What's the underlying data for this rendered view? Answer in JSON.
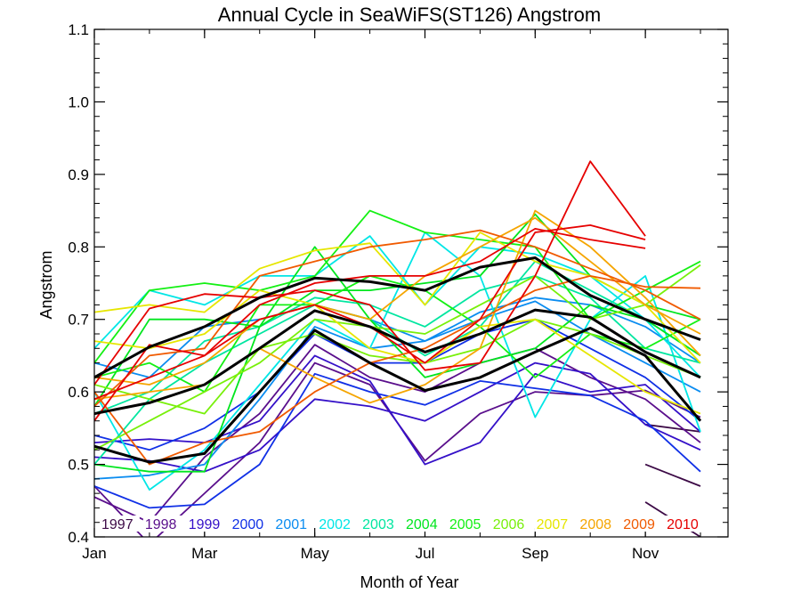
{
  "chart_data": {
    "type": "line",
    "title": "Annual Cycle in SeaWiFS(ST126) Angstrom",
    "xlabel": "Month of Year",
    "ylabel": "Angstrom",
    "xlim": [
      1,
      12.5
    ],
    "ylim": [
      0.4,
      1.1
    ],
    "xticks": [
      {
        "value": 1,
        "label": "Jan"
      },
      {
        "value": 3,
        "label": "Mar"
      },
      {
        "value": 5,
        "label": "May"
      },
      {
        "value": 7,
        "label": "Jul"
      },
      {
        "value": 9,
        "label": "Sep"
      },
      {
        "value": 11,
        "label": "Nov"
      }
    ],
    "yticks": [
      {
        "value": 0.4,
        "label": "0.4"
      },
      {
        "value": 0.5,
        "label": "0.5"
      },
      {
        "value": 0.6,
        "label": "0.6"
      },
      {
        "value": 0.7,
        "label": "0.7"
      },
      {
        "value": 0.8,
        "label": "0.8"
      },
      {
        "value": 0.9,
        "label": "0.9"
      },
      {
        "value": 1.0,
        "label": "1.0"
      },
      {
        "value": 1.1,
        "label": "1.1"
      }
    ],
    "x": [
      1,
      2,
      3,
      4,
      5,
      6,
      7,
      8,
      9,
      10,
      11,
      12
    ],
    "legend_position": "bottom-inside",
    "series": [
      {
        "name": "1997",
        "color": "#3c0a46",
        "lines": [
          [
            null,
            null,
            null,
            null,
            null,
            null,
            null,
            null,
            null,
            null,
            0.555,
            0.545
          ],
          [
            null,
            null,
            null,
            null,
            null,
            null,
            null,
            null,
            null,
            null,
            0.5,
            0.47
          ],
          [
            null,
            null,
            null,
            null,
            null,
            null,
            null,
            null,
            null,
            null,
            0.448,
            0.4
          ]
        ]
      },
      {
        "name": "1998",
        "color": "#5a0f8c",
        "lines": [
          [
            0.47,
            0.39,
            0.46,
            0.53,
            0.64,
            0.61,
            0.505,
            0.57,
            0.6,
            0.595,
            0.602,
            0.565
          ],
          [
            0.455,
            0.42,
            0.51,
            0.57,
            0.665,
            0.62,
            0.6,
            0.64,
            0.66,
            0.62,
            0.59,
            0.53
          ]
        ]
      },
      {
        "name": "1999",
        "color": "#3410c8",
        "lines": [
          [
            0.53,
            0.535,
            0.53,
            0.56,
            0.65,
            0.615,
            0.5,
            0.53,
            0.625,
            0.6,
            0.61,
            0.545
          ],
          [
            0.51,
            0.505,
            0.49,
            0.52,
            0.59,
            0.58,
            0.56,
            0.6,
            0.64,
            0.625,
            0.555,
            0.52
          ]
        ]
      },
      {
        "name": "2000",
        "color": "#1030e6",
        "lines": [
          [
            0.47,
            0.44,
            0.445,
            0.5,
            0.625,
            0.6,
            0.582,
            0.615,
            0.605,
            0.595,
            0.56,
            0.49
          ],
          [
            0.54,
            0.52,
            0.55,
            0.6,
            0.68,
            0.64,
            0.64,
            0.68,
            0.7,
            0.66,
            0.62,
            0.56
          ]
        ]
      },
      {
        "name": "2001",
        "color": "#0a8cf0",
        "lines": [
          [
            0.48,
            0.485,
            0.5,
            0.59,
            0.69,
            0.66,
            0.67,
            0.7,
            0.725,
            0.68,
            0.64,
            0.6
          ],
          [
            0.64,
            0.62,
            0.69,
            0.7,
            0.72,
            0.7,
            0.67,
            0.71,
            0.73,
            0.72,
            0.69,
            0.64
          ]
        ]
      },
      {
        "name": "2002",
        "color": "#00e6e6",
        "lines": [
          [
            0.6,
            0.465,
            0.52,
            0.61,
            0.7,
            0.66,
            0.82,
            0.76,
            0.565,
            0.7,
            0.76,
            0.545
          ],
          [
            0.66,
            0.74,
            0.72,
            0.76,
            0.76,
            0.815,
            0.72,
            0.8,
            0.79,
            0.76,
            0.7,
            0.62
          ]
        ]
      },
      {
        "name": "2003",
        "color": "#00e6a0",
        "lines": [
          [
            0.5,
            0.59,
            0.64,
            0.68,
            0.72,
            0.7,
            0.65,
            0.69,
            0.78,
            0.74,
            0.7,
            0.65
          ],
          [
            0.57,
            0.6,
            0.67,
            0.69,
            0.73,
            0.72,
            0.69,
            0.74,
            0.76,
            0.73,
            0.66,
            0.64
          ]
        ]
      },
      {
        "name": "2004",
        "color": "#00e61e",
        "lines": [
          [
            0.58,
            0.7,
            0.7,
            0.69,
            0.8,
            0.7,
            0.62,
            0.64,
            0.66,
            0.72,
            0.7,
            0.65
          ],
          [
            0.5,
            0.49,
            0.49,
            0.69,
            0.74,
            0.74,
            0.75,
            0.76,
            0.845,
            0.76,
            0.72,
            0.7
          ]
        ]
      },
      {
        "name": "2005",
        "color": "#14f014",
        "lines": [
          [
            0.64,
            0.74,
            0.75,
            0.74,
            0.76,
            0.85,
            0.82,
            0.81,
            0.8,
            0.7,
            0.74,
            0.78
          ],
          [
            0.62,
            0.64,
            0.6,
            0.72,
            0.72,
            0.76,
            0.74,
            0.69,
            0.62,
            0.68,
            0.66,
            0.7
          ]
        ]
      },
      {
        "name": "2006",
        "color": "#78f00a",
        "lines": [
          [
            0.52,
            0.56,
            0.6,
            0.64,
            0.7,
            0.69,
            0.68,
            0.72,
            0.76,
            0.7,
            0.72,
            0.775
          ],
          [
            0.61,
            0.59,
            0.57,
            0.66,
            0.68,
            0.65,
            0.64,
            0.66,
            0.7,
            0.68,
            0.65,
            0.62
          ]
        ]
      },
      {
        "name": "2007",
        "color": "#e6e600",
        "lines": [
          [
            0.71,
            0.72,
            0.71,
            0.77,
            0.795,
            0.805,
            0.72,
            0.82,
            0.78,
            0.76,
            0.72,
            0.64
          ],
          [
            0.67,
            0.66,
            0.68,
            0.74,
            0.72,
            0.66,
            0.64,
            0.69,
            0.7,
            0.65,
            0.6,
            0.57
          ]
        ]
      },
      {
        "name": "2008",
        "color": "#f5a500",
        "lines": [
          [
            0.59,
            0.6,
            0.61,
            0.66,
            0.62,
            0.585,
            0.61,
            0.66,
            0.85,
            0.8,
            0.73,
            0.65
          ],
          [
            0.62,
            0.61,
            0.64,
            0.7,
            0.72,
            0.7,
            0.76,
            0.8,
            0.84,
            0.78,
            0.72,
            0.68
          ]
        ]
      },
      {
        "name": "2009",
        "color": "#f05a00",
        "lines": [
          [
            0.6,
            0.5,
            0.53,
            0.545,
            0.6,
            0.64,
            0.66,
            0.7,
            0.74,
            0.76,
            0.745,
            0.743
          ],
          [
            0.58,
            0.65,
            0.66,
            0.76,
            0.78,
            0.8,
            0.81,
            0.823,
            0.8,
            0.77,
            0.74,
            0.7
          ]
        ]
      },
      {
        "name": "2010",
        "color": "#e60000",
        "lines": [
          [
            0.61,
            0.715,
            0.735,
            0.73,
            0.74,
            0.72,
            0.63,
            0.64,
            0.76,
            0.918,
            0.815,
            null
          ],
          [
            0.56,
            0.665,
            0.65,
            0.7,
            0.72,
            0.69,
            0.64,
            0.7,
            0.82,
            0.83,
            0.81,
            null
          ],
          [
            0.59,
            0.62,
            0.65,
            0.72,
            0.75,
            0.76,
            0.76,
            0.78,
            0.825,
            0.81,
            0.798,
            null
          ]
        ]
      },
      {
        "name": "",
        "color": "#000000",
        "bold": true,
        "lines": [
          [
            0.525,
            0.503,
            0.515,
            0.6,
            0.685,
            0.64,
            0.602,
            0.62,
            0.655,
            0.688,
            0.65,
            0.56
          ],
          [
            0.57,
            0.585,
            0.61,
            0.66,
            0.712,
            0.69,
            0.655,
            0.68,
            0.713,
            0.703,
            0.655,
            0.62
          ],
          [
            0.62,
            0.662,
            0.69,
            0.73,
            0.757,
            0.752,
            0.74,
            0.772,
            0.785,
            0.733,
            0.7,
            0.672
          ]
        ]
      }
    ]
  }
}
